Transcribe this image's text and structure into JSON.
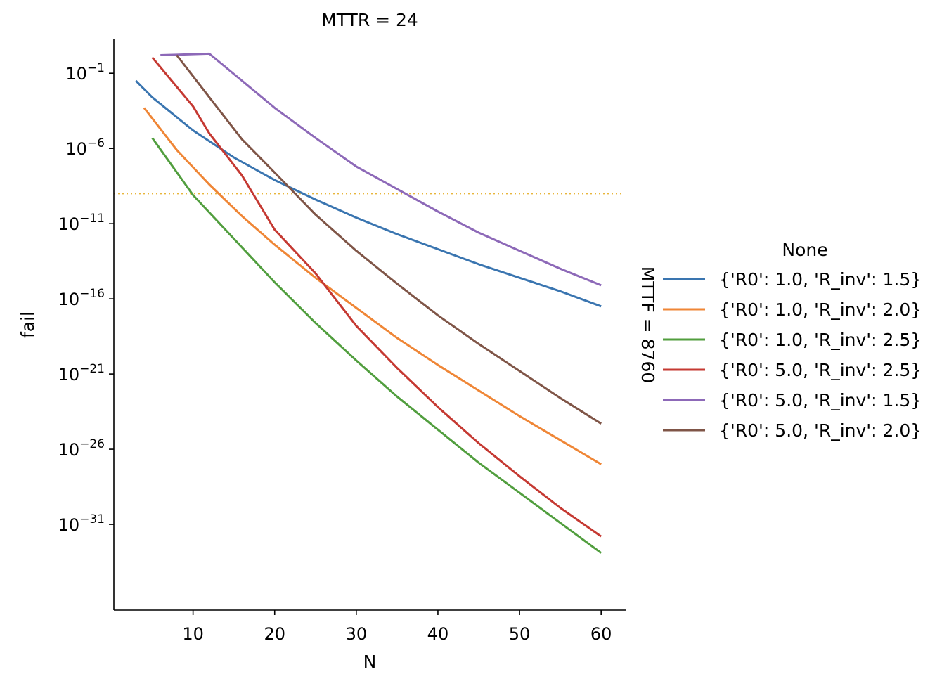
{
  "chart_data": {
    "type": "line",
    "title": "MTTR = 24",
    "row_label": "MTTF = 8760",
    "xlabel": "N",
    "ylabel": "fail",
    "xscale": "linear",
    "yscale": "log",
    "xlim": [
      0.3,
      63
    ],
    "ylim_exp": [
      -36.7,
      1.3
    ],
    "xticks": [
      10,
      20,
      30,
      40,
      50,
      60
    ],
    "yticks": [
      {
        "exp": -1,
        "base": "10",
        "sup": "−1"
      },
      {
        "exp": -6,
        "base": "10",
        "sup": "−6"
      },
      {
        "exp": -11,
        "base": "10",
        "sup": "−11"
      },
      {
        "exp": -16,
        "base": "10",
        "sup": "−16"
      },
      {
        "exp": -21,
        "base": "10",
        "sup": "−21"
      },
      {
        "exp": -26,
        "base": "10",
        "sup": "−26"
      },
      {
        "exp": -31,
        "base": "10",
        "sup": "−31"
      }
    ],
    "threshold": {
      "exp": -9,
      "style": "dotted",
      "color": "#e8b53a"
    },
    "legend": {
      "title": "None",
      "position": "right"
    },
    "series": [
      {
        "name": "{'R0': 1.0, 'R_inv': 1.5}",
        "color": "#3a75b0",
        "x": [
          3,
          5,
          10,
          15,
          20,
          25,
          30,
          35,
          40,
          45,
          50,
          55,
          60
        ],
        "log10_y": [
          -1.5,
          -2.6,
          -4.8,
          -6.6,
          -8.1,
          -9.4,
          -10.6,
          -11.7,
          -12.7,
          -13.7,
          -14.6,
          -15.5,
          -16.5
        ]
      },
      {
        "name": "{'R0': 1.0, 'R_inv': 2.0}",
        "color": "#ef8636",
        "x": [
          4,
          8,
          12,
          16,
          20,
          25,
          30,
          35,
          40,
          45,
          50,
          55,
          60
        ],
        "log10_y": [
          -3.3,
          -6.1,
          -8.4,
          -10.5,
          -12.4,
          -14.6,
          -16.6,
          -18.6,
          -20.4,
          -22.1,
          -23.8,
          -25.4,
          -27.0
        ]
      },
      {
        "name": "{'R0': 1.0, 'R_inv': 2.5}",
        "color": "#519e3e",
        "x": [
          5,
          10,
          15,
          20,
          25,
          30,
          35,
          40,
          45,
          50,
          55,
          60
        ],
        "log10_y": [
          -5.3,
          -9.1,
          -12.0,
          -14.9,
          -17.6,
          -20.1,
          -22.5,
          -24.7,
          -26.9,
          -28.9,
          -30.9,
          -32.9
        ]
      },
      {
        "name": "{'R0': 5.0, 'R_inv': 2.5}",
        "color": "#c53932",
        "x": [
          5,
          10,
          12,
          16,
          20,
          25,
          30,
          35,
          40,
          45,
          50,
          55,
          60
        ],
        "log10_y": [
          0.05,
          -3.2,
          -5.0,
          -7.8,
          -11.4,
          -14.3,
          -17.8,
          -20.6,
          -23.2,
          -25.6,
          -27.8,
          -29.9,
          -31.8
        ]
      },
      {
        "name": "{'R0': 5.0, 'R_inv': 1.5}",
        "color": "#8d69b8",
        "x": [
          6,
          12,
          16,
          20,
          25,
          30,
          35,
          40,
          45,
          50,
          55,
          60
        ],
        "log10_y": [
          0.2,
          0.3,
          -1.5,
          -3.3,
          -5.3,
          -7.2,
          -8.7,
          -10.2,
          -11.6,
          -12.8,
          -14.0,
          -15.1
        ]
      },
      {
        "name": "{'R0': 5.0, 'R_inv': 2.0}",
        "color": "#7f5547",
        "x": [
          8,
          12,
          16,
          20,
          25,
          30,
          35,
          40,
          45,
          50,
          55,
          60
        ],
        "log10_y": [
          0.2,
          -2.6,
          -5.4,
          -7.6,
          -10.4,
          -12.8,
          -15.0,
          -17.1,
          -19.0,
          -20.8,
          -22.6,
          -24.3
        ]
      }
    ]
  }
}
